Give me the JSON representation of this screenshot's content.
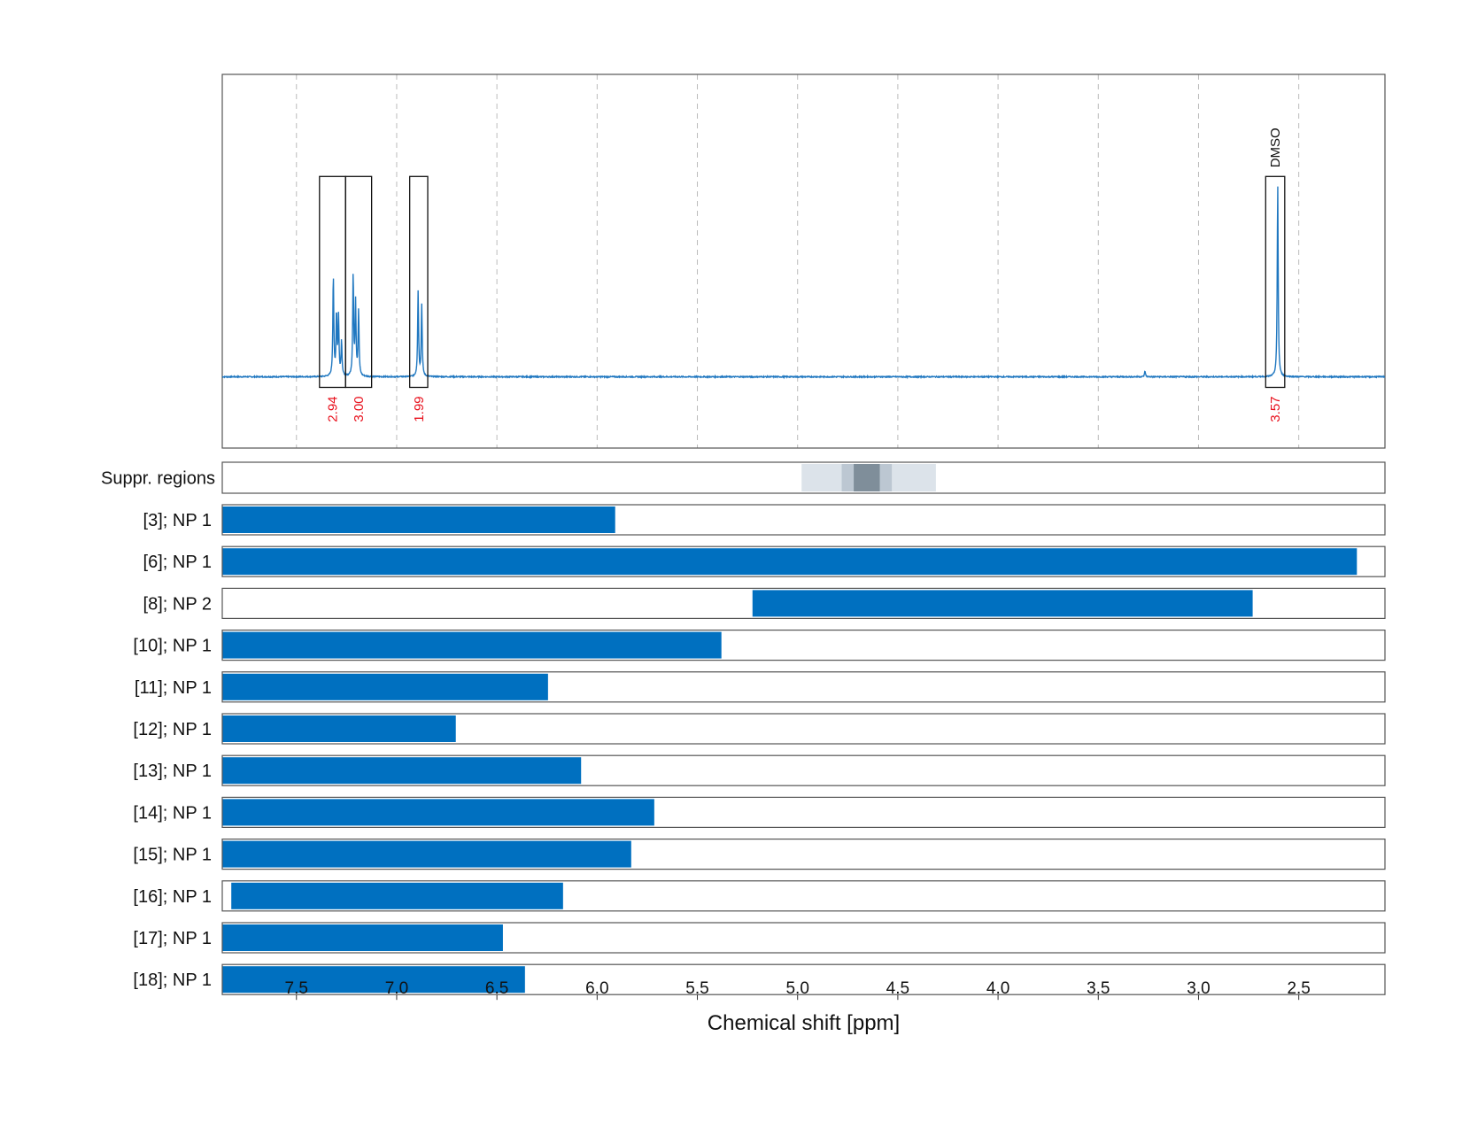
{
  "chart_data": {
    "type": "line",
    "xlabel": "Chemical shift [ppm]",
    "xlim": [
      7.87,
      2.07
    ],
    "x_reversed": true,
    "xticks": [
      "7.5",
      "7.0",
      "6.5",
      "6.0",
      "5.5",
      "5.0",
      "4.5",
      "4.0",
      "3.5",
      "3.0",
      "2.5"
    ],
    "grid": "vertical dashed",
    "spectrum": {
      "baseline": 0,
      "ylim": [
        -0.37,
        1.57
      ],
      "peaks": [
        {
          "ppm": 7.316,
          "height": 0.52
        },
        {
          "ppm": 7.3,
          "height": 0.32
        },
        {
          "ppm": 7.29,
          "height": 0.3
        },
        {
          "ppm": 7.275,
          "height": 0.18
        },
        {
          "ppm": 7.217,
          "height": 0.53
        },
        {
          "ppm": 7.205,
          "height": 0.38
        },
        {
          "ppm": 7.19,
          "height": 0.34
        },
        {
          "ppm": 6.893,
          "height": 0.44
        },
        {
          "ppm": 6.875,
          "height": 0.37
        },
        {
          "ppm": 3.267,
          "height": 0.03
        },
        {
          "ppm": 2.605,
          "height": 1.0
        }
      ]
    },
    "integration_regions": [
      {
        "from": 7.385,
        "to": 7.255,
        "label": "2.94",
        "tag": ""
      },
      {
        "from": 7.255,
        "to": 7.125,
        "label": "3.00",
        "tag": ""
      },
      {
        "from": 6.935,
        "to": 6.845,
        "label": "1.99",
        "tag": ""
      },
      {
        "from": 2.665,
        "to": 2.57,
        "label": "3.57",
        "tag": "DMSO"
      }
    ],
    "suppressed_regions": {
      "label": "Suppr. regions",
      "bands": [
        {
          "from": 4.98,
          "to": 4.31,
          "level": 1
        },
        {
          "from": 4.78,
          "to": 4.53,
          "level": 2
        },
        {
          "from": 4.72,
          "to": 4.59,
          "level": 3
        }
      ]
    },
    "ranges": [
      {
        "label": "[3]; NP 1",
        "from": 7.87,
        "to": 5.91
      },
      {
        "label": "[6]; NP 1",
        "from": 7.87,
        "to": 2.21
      },
      {
        "label": "[8]; NP 2",
        "from": 5.225,
        "to": 2.73
      },
      {
        "label": "[10]; NP 1",
        "from": 7.87,
        "to": 5.38
      },
      {
        "label": "[11]; NP 1",
        "from": 7.87,
        "to": 6.245
      },
      {
        "label": "[12]; NP 1",
        "from": 7.87,
        "to": 6.705
      },
      {
        "label": "[13]; NP 1",
        "from": 7.87,
        "to": 6.08
      },
      {
        "label": "[14]; NP 1",
        "from": 7.87,
        "to": 5.715
      },
      {
        "label": "[15]; NP 1",
        "from": 7.87,
        "to": 5.83
      },
      {
        "label": "[16]; NP 1",
        "from": 7.825,
        "to": 6.17
      },
      {
        "label": "[17]; NP 1",
        "from": 7.87,
        "to": 6.47
      },
      {
        "label": "[18]; NP 1",
        "from": 7.87,
        "to": 6.36
      }
    ],
    "colors": {
      "spectrum": "#1f77c0",
      "range_bar": "#0070c0",
      "integral_label": "#e8101c",
      "frame": "#555555",
      "grid": "#bbbbbb",
      "suppr_levels": [
        "#dce3ea",
        "#bcc7d2",
        "#7f8e9a"
      ]
    }
  }
}
